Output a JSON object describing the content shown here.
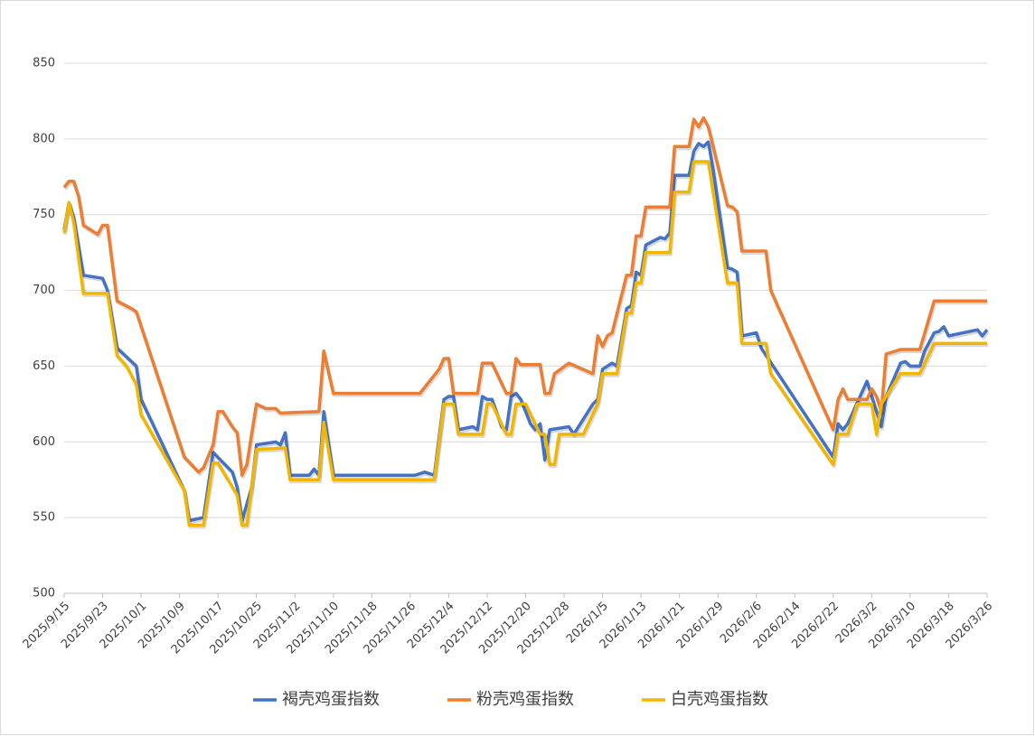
{
  "chart_data": {
    "type": "line",
    "xlim": [
      "2025/9/15",
      "2026/3/26"
    ],
    "xticks": [
      "2025/9/15",
      "2025/9/23",
      "2025/10/1",
      "2025/10/9",
      "2025/10/17",
      "2025/10/25",
      "2025/11/2",
      "2025/11/10",
      "2025/11/18",
      "2025/11/26",
      "2025/12/4",
      "2025/12/12",
      "2025/12/20",
      "2025/12/28",
      "2026/1/5",
      "2026/1/13",
      "2026/1/21",
      "2026/1/29",
      "2026/2/6",
      "2026/2/14",
      "2026/2/22",
      "2026/3/2",
      "2026/3/10",
      "2026/3/18",
      "2026/3/26"
    ],
    "ylim": [
      500,
      850
    ],
    "yticks": [
      500,
      550,
      600,
      650,
      700,
      750,
      800,
      850
    ],
    "grid": true,
    "legend": "bottom",
    "series": [
      {
        "name": "褐壳鸡蛋指数",
        "color": "#4472c4",
        "x": [
          "2025/9/15",
          "2025/9/16",
          "2025/9/17",
          "2025/9/19",
          "2025/9/23",
          "2025/9/24",
          "2025/9/26",
          "2025/9/30",
          "2025/10/1",
          "2025/10/10",
          "2025/10/11",
          "2025/10/14",
          "2025/10/16",
          "2025/10/20",
          "2025/10/21",
          "2025/10/22",
          "2025/10/24",
          "2025/10/25",
          "2025/10/29",
          "2025/10/30",
          "2025/10/31",
          "2025/11/1",
          "2025/11/5",
          "2025/11/6",
          "2025/11/7",
          "2025/11/8",
          "2025/11/10",
          "2025/11/27",
          "2025/11/29",
          "2025/12/1",
          "2025/12/3",
          "2025/12/4",
          "2025/12/5",
          "2025/12/6",
          "2025/12/9",
          "2025/12/10",
          "2025/12/11",
          "2025/12/12",
          "2025/12/13",
          "2025/12/15",
          "2025/12/16",
          "2025/12/17",
          "2025/12/18",
          "2025/12/19",
          "2025/12/21",
          "2025/12/22",
          "2025/12/23",
          "2025/12/24",
          "2025/12/25",
          "2025/12/29",
          "2025/12/30",
          "2026/1/3",
          "2026/1/4",
          "2026/1/5",
          "2026/1/7",
          "2026/1/8",
          "2026/1/10",
          "2026/1/11",
          "2026/1/12",
          "2026/1/13",
          "2026/1/14",
          "2026/1/17",
          "2026/1/18",
          "2026/1/19",
          "2026/1/20",
          "2026/1/23",
          "2026/1/24",
          "2026/1/25",
          "2026/1/26",
          "2026/1/27",
          "2026/1/28",
          "2026/1/31",
          "2026/2/1",
          "2026/2/2",
          "2026/2/3",
          "2026/2/6",
          "2026/2/7",
          "2026/2/22",
          "2026/2/23",
          "2026/2/24",
          "2026/2/25",
          "2026/3/1",
          "2026/3/3",
          "2026/3/4",
          "2026/3/5",
          "2026/3/8",
          "2026/3/9",
          "2026/3/10",
          "2026/3/12",
          "2026/3/13",
          "2026/3/15",
          "2026/3/16",
          "2026/3/17",
          "2026/3/18",
          "2026/3/24",
          "2026/3/25",
          "2026/3/26"
        ],
        "values": [
          740,
          758,
          748,
          710,
          708,
          700,
          662,
          650,
          628,
          568,
          548,
          550,
          593,
          580,
          570,
          548,
          570,
          598,
          600,
          598,
          606,
          578,
          578,
          582,
          578,
          620,
          578,
          578,
          580,
          578,
          628,
          630,
          630,
          608,
          610,
          608,
          630,
          628,
          628,
          610,
          608,
          630,
          632,
          628,
          612,
          608,
          612,
          588,
          608,
          610,
          605,
          625,
          628,
          648,
          652,
          650,
          688,
          690,
          712,
          710,
          730,
          735,
          734,
          738,
          776,
          776,
          792,
          797,
          795,
          798,
          780,
          715,
          714,
          712,
          670,
          672,
          662,
          590,
          612,
          608,
          612,
          640,
          620,
          610,
          630,
          652,
          653,
          650,
          650,
          660,
          672,
          673,
          676,
          670,
          674,
          670,
          674
        ]
      },
      {
        "name": "粉壳鸡蛋指数",
        "color": "#ed7d31",
        "x": [
          "2025/9/15",
          "2025/9/16",
          "2025/9/17",
          "2025/9/18",
          "2025/9/19",
          "2025/9/22",
          "2025/9/23",
          "2025/9/24",
          "2025/9/26",
          "2025/9/29",
          "2025/9/30",
          "2025/10/10",
          "2025/10/13",
          "2025/10/14",
          "2025/10/16",
          "2025/10/17",
          "2025/10/18",
          "2025/10/20",
          "2025/10/21",
          "2025/10/22",
          "2025/10/23",
          "2025/10/25",
          "2025/10/27",
          "2025/10/29",
          "2025/10/30",
          "2025/11/7",
          "2025/11/8",
          "2025/11/10",
          "2025/11/28",
          "2025/12/2",
          "2025/12/3",
          "2025/12/4",
          "2025/12/5",
          "2025/12/10",
          "2025/12/11",
          "2025/12/13",
          "2025/12/16",
          "2025/12/17",
          "2025/12/18",
          "2025/12/19",
          "2025/12/23",
          "2025/12/24",
          "2025/12/25",
          "2025/12/26",
          "2025/12/29",
          "2026/1/3",
          "2026/1/4",
          "2026/1/5",
          "2026/1/6",
          "2026/1/7",
          "2026/1/10",
          "2026/1/11",
          "2026/1/12",
          "2026/1/13",
          "2026/1/14",
          "2026/1/19",
          "2026/1/20",
          "2026/1/23",
          "2026/1/24",
          "2026/1/25",
          "2026/1/26",
          "2026/1/27",
          "2026/1/31",
          "2026/2/1",
          "2026/2/2",
          "2026/2/3",
          "2026/2/8",
          "2026/2/9",
          "2026/2/22",
          "2026/2/23",
          "2026/2/24",
          "2026/2/25",
          "2026/3/1",
          "2026/3/2",
          "2026/3/3",
          "2026/3/4",
          "2026/3/5",
          "2026/3/8",
          "2026/3/12",
          "2026/3/15",
          "2026/3/26"
        ],
        "values": [
          768,
          772,
          772,
          762,
          743,
          737,
          743,
          743,
          693,
          688,
          686,
          590,
          580,
          583,
          598,
          620,
          620,
          610,
          606,
          578,
          585,
          625,
          622,
          622,
          619,
          620,
          660,
          632,
          632,
          648,
          655,
          655,
          632,
          632,
          652,
          652,
          632,
          632,
          655,
          651,
          651,
          632,
          632,
          645,
          652,
          645,
          670,
          663,
          670,
          672,
          710,
          710,
          736,
          736,
          755,
          755,
          795,
          795,
          813,
          808,
          814,
          808,
          756,
          755,
          752,
          726,
          726,
          700,
          608,
          628,
          635,
          628,
          628,
          635,
          630,
          620,
          658,
          661,
          661,
          693,
          693
        ]
      },
      {
        "name": "白壳鸡蛋指数",
        "color": "#f2b600",
        "x": [
          "2025/9/15",
          "2025/9/16",
          "2025/9/17",
          "2025/9/19",
          "2025/9/24",
          "2025/9/26",
          "2025/9/28",
          "2025/9/30",
          "2025/10/1",
          "2025/10/10",
          "2025/10/11",
          "2025/10/14",
          "2025/10/16",
          "2025/10/17",
          "2025/10/21",
          "2025/10/22",
          "2025/10/23",
          "2025/10/25",
          "2025/10/31",
          "2025/11/1",
          "2025/11/7",
          "2025/11/8",
          "2025/11/10",
          "2025/12/1",
          "2025/12/3",
          "2025/12/5",
          "2025/12/6",
          "2025/12/11",
          "2025/12/12",
          "2025/12/13",
          "2025/12/16",
          "2025/12/17",
          "2025/12/18",
          "2025/12/20",
          "2025/12/23",
          "2025/12/24",
          "2025/12/25",
          "2025/12/26",
          "2025/12/27",
          "2026/1/1",
          "2026/1/4",
          "2026/1/5",
          "2026/1/8",
          "2026/1/10",
          "2026/1/11",
          "2026/1/12",
          "2026/1/13",
          "2026/1/14",
          "2026/1/19",
          "2026/1/20",
          "2026/1/23",
          "2026/1/24",
          "2026/1/27",
          "2026/1/31",
          "2026/2/2",
          "2026/2/3",
          "2026/2/8",
          "2026/2/9",
          "2026/2/22",
          "2026/2/23",
          "2026/2/25",
          "2026/2/27",
          "2026/3/2",
          "2026/3/3",
          "2026/3/4",
          "2026/3/5",
          "2026/3/8",
          "2026/3/12",
          "2026/3/15",
          "2026/3/26"
        ],
        "values": [
          738,
          758,
          745,
          698,
          698,
          657,
          650,
          638,
          618,
          568,
          545,
          545,
          586,
          586,
          565,
          545,
          545,
          595,
          596,
          575,
          575,
          613,
          575,
          575,
          625,
          625,
          605,
          605,
          625,
          625,
          605,
          605,
          625,
          625,
          605,
          605,
          585,
          585,
          605,
          605,
          625,
          645,
          645,
          685,
          685,
          705,
          705,
          725,
          725,
          765,
          765,
          785,
          785,
          705,
          705,
          665,
          665,
          645,
          585,
          605,
          605,
          625,
          625,
          605,
          625,
          630,
          645,
          645,
          665,
          665
        ]
      }
    ]
  }
}
